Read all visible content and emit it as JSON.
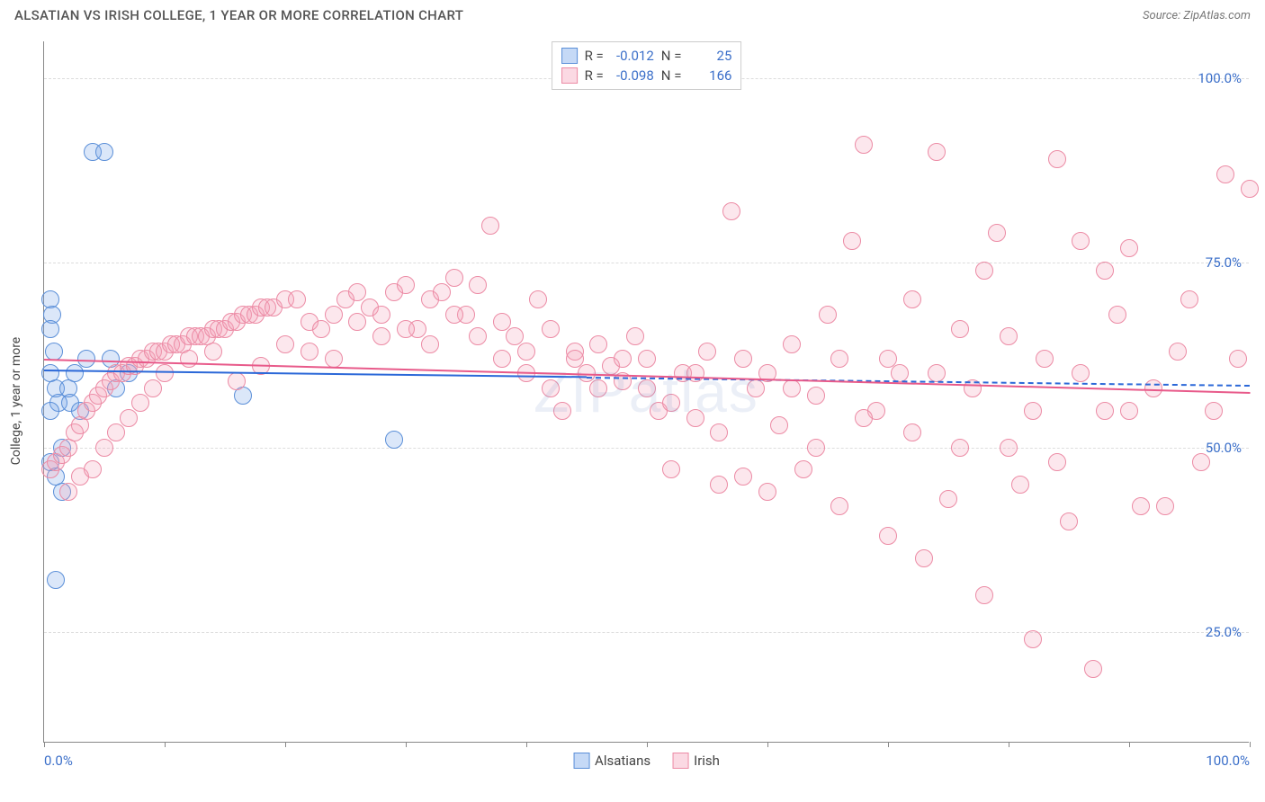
{
  "header": {
    "title": "ALSATIAN VS IRISH COLLEGE, 1 YEAR OR MORE CORRELATION CHART",
    "source": "Source: ZipAtlas.com"
  },
  "watermark": "ZIPatlas",
  "chart": {
    "type": "scatter",
    "y_axis_title": "College, 1 year or more",
    "xlim": [
      0,
      100
    ],
    "ylim": [
      10,
      105
    ],
    "x_ticks": [
      0,
      10,
      20,
      30,
      40,
      50,
      60,
      70,
      80,
      90,
      100
    ],
    "x_tick_labels": {
      "0": "0.0%",
      "100": "100.0%"
    },
    "y_gridlines": [
      25,
      50,
      75,
      100
    ],
    "y_tick_labels": {
      "25": "25.0%",
      "50": "50.0%",
      "75": "75.0%",
      "100": "100.0%"
    },
    "grid_color": "#dddddd",
    "axis_color": "#888888",
    "tick_label_color": "#3b6fc9",
    "background_color": "#ffffff",
    "point_radius": 10,
    "point_stroke_width": 1.5,
    "point_fill_opacity": 0.25,
    "series": [
      {
        "name": "Alsatians",
        "color": "#6fa0e8",
        "stroke": "#5b8fd8",
        "R": "-0.012",
        "N": "25",
        "trend": {
          "y_start": 60.5,
          "y_end": 58.5,
          "x_start": 0,
          "x_end": 45,
          "dashed_after": true,
          "line_color": "#2b68d8"
        },
        "points": [
          [
            0.5,
            70
          ],
          [
            0.7,
            68
          ],
          [
            0.5,
            66
          ],
          [
            0.8,
            63
          ],
          [
            0.5,
            60
          ],
          [
            1.0,
            58
          ],
          [
            1.2,
            56
          ],
          [
            0.5,
            55
          ],
          [
            1.5,
            50
          ],
          [
            0.5,
            48
          ],
          [
            1.0,
            46
          ],
          [
            1.5,
            44
          ],
          [
            2.0,
            58
          ],
          [
            2.2,
            56
          ],
          [
            2.5,
            60
          ],
          [
            3.0,
            55
          ],
          [
            3.5,
            62
          ],
          [
            4.0,
            90
          ],
          [
            5.0,
            90
          ],
          [
            5.5,
            62
          ],
          [
            6.0,
            58
          ],
          [
            7.0,
            60
          ],
          [
            16.5,
            57
          ],
          [
            1.0,
            32
          ],
          [
            29.0,
            51
          ]
        ]
      },
      {
        "name": "Irish",
        "color": "#f5a0b8",
        "stroke": "#ec8ba5",
        "R": "-0.098",
        "N": "166",
        "trend": {
          "y_start": 62,
          "y_end": 57.5,
          "x_start": 0,
          "x_end": 100,
          "dashed_after": false,
          "line_color": "#e85a8a"
        },
        "points": [
          [
            0.5,
            47
          ],
          [
            1,
            48
          ],
          [
            1.5,
            49
          ],
          [
            2,
            50
          ],
          [
            2.5,
            52
          ],
          [
            3,
            53
          ],
          [
            3.5,
            55
          ],
          [
            4,
            56
          ],
          [
            4.5,
            57
          ],
          [
            5,
            58
          ],
          [
            5.5,
            59
          ],
          [
            6,
            60
          ],
          [
            6.5,
            60
          ],
          [
            7,
            61
          ],
          [
            7.5,
            61
          ],
          [
            8,
            62
          ],
          [
            8.5,
            62
          ],
          [
            9,
            63
          ],
          [
            9.5,
            63
          ],
          [
            10,
            63
          ],
          [
            10.5,
            64
          ],
          [
            11,
            64
          ],
          [
            11.5,
            64
          ],
          [
            12,
            65
          ],
          [
            12.5,
            65
          ],
          [
            13,
            65
          ],
          [
            13.5,
            65
          ],
          [
            14,
            66
          ],
          [
            14.5,
            66
          ],
          [
            15,
            66
          ],
          [
            15.5,
            67
          ],
          [
            16,
            67
          ],
          [
            16.5,
            68
          ],
          [
            17,
            68
          ],
          [
            17.5,
            68
          ],
          [
            18,
            69
          ],
          [
            18.5,
            69
          ],
          [
            19,
            69
          ],
          [
            20,
            70
          ],
          [
            21,
            70
          ],
          [
            22,
            67
          ],
          [
            23,
            66
          ],
          [
            24,
            68
          ],
          [
            25,
            70
          ],
          [
            26,
            71
          ],
          [
            27,
            69
          ],
          [
            28,
            68
          ],
          [
            29,
            71
          ],
          [
            30,
            72
          ],
          [
            31,
            66
          ],
          [
            32,
            70
          ],
          [
            33,
            71
          ],
          [
            34,
            73
          ],
          [
            35,
            68
          ],
          [
            36,
            72
          ],
          [
            37,
            80
          ],
          [
            38,
            67
          ],
          [
            39,
            65
          ],
          [
            40,
            63
          ],
          [
            41,
            70
          ],
          [
            42,
            58
          ],
          [
            43,
            55
          ],
          [
            44,
            63
          ],
          [
            45,
            60
          ],
          [
            46,
            58
          ],
          [
            47,
            61
          ],
          [
            48,
            59
          ],
          [
            49,
            65
          ],
          [
            50,
            62
          ],
          [
            51,
            55
          ],
          [
            52,
            47
          ],
          [
            53,
            60
          ],
          [
            54,
            54
          ],
          [
            55,
            63
          ],
          [
            56,
            45
          ],
          [
            57,
            82
          ],
          [
            58,
            46
          ],
          [
            59,
            58
          ],
          [
            60,
            44
          ],
          [
            61,
            53
          ],
          [
            62,
            64
          ],
          [
            63,
            47
          ],
          [
            64,
            57
          ],
          [
            65,
            68
          ],
          [
            66,
            42
          ],
          [
            67,
            78
          ],
          [
            68,
            91
          ],
          [
            69,
            55
          ],
          [
            70,
            38
          ],
          [
            71,
            60
          ],
          [
            72,
            52
          ],
          [
            73,
            35
          ],
          [
            74,
            90
          ],
          [
            75,
            43
          ],
          [
            76,
            66
          ],
          [
            77,
            58
          ],
          [
            78,
            30
          ],
          [
            79,
            79
          ],
          [
            80,
            50
          ],
          [
            81,
            45
          ],
          [
            82,
            24
          ],
          [
            83,
            62
          ],
          [
            84,
            89
          ],
          [
            85,
            40
          ],
          [
            86,
            78
          ],
          [
            87,
            20
          ],
          [
            88,
            55
          ],
          [
            89,
            68
          ],
          [
            90,
            77
          ],
          [
            91,
            42
          ],
          [
            92,
            58
          ],
          [
            93,
            42
          ],
          [
            94,
            63
          ],
          [
            95,
            70
          ],
          [
            96,
            48
          ],
          [
            97,
            55
          ],
          [
            98,
            87
          ],
          [
            99,
            62
          ],
          [
            100,
            85
          ],
          [
            2,
            44
          ],
          [
            3,
            46
          ],
          [
            4,
            47
          ],
          [
            5,
            50
          ],
          [
            6,
            52
          ],
          [
            7,
            54
          ],
          [
            8,
            56
          ],
          [
            9,
            58
          ],
          [
            10,
            60
          ],
          [
            12,
            62
          ],
          [
            14,
            63
          ],
          [
            16,
            59
          ],
          [
            18,
            61
          ],
          [
            20,
            64
          ],
          [
            22,
            63
          ],
          [
            24,
            62
          ],
          [
            26,
            67
          ],
          [
            28,
            65
          ],
          [
            30,
            66
          ],
          [
            32,
            64
          ],
          [
            34,
            68
          ],
          [
            36,
            65
          ],
          [
            38,
            62
          ],
          [
            40,
            60
          ],
          [
            42,
            66
          ],
          [
            44,
            62
          ],
          [
            46,
            64
          ],
          [
            48,
            62
          ],
          [
            50,
            58
          ],
          [
            52,
            56
          ],
          [
            54,
            60
          ],
          [
            56,
            52
          ],
          [
            58,
            62
          ],
          [
            60,
            60
          ],
          [
            62,
            58
          ],
          [
            64,
            50
          ],
          [
            66,
            62
          ],
          [
            68,
            54
          ],
          [
            70,
            62
          ],
          [
            72,
            70
          ],
          [
            74,
            60
          ],
          [
            76,
            50
          ],
          [
            78,
            74
          ],
          [
            80,
            65
          ],
          [
            82,
            55
          ],
          [
            84,
            48
          ],
          [
            86,
            60
          ],
          [
            88,
            74
          ],
          [
            90,
            55
          ]
        ]
      }
    ],
    "legend_top": {
      "R_label": "R =",
      "N_label": "N ="
    },
    "legend_bottom": {
      "items": [
        "Alsatians",
        "Irish"
      ]
    }
  }
}
